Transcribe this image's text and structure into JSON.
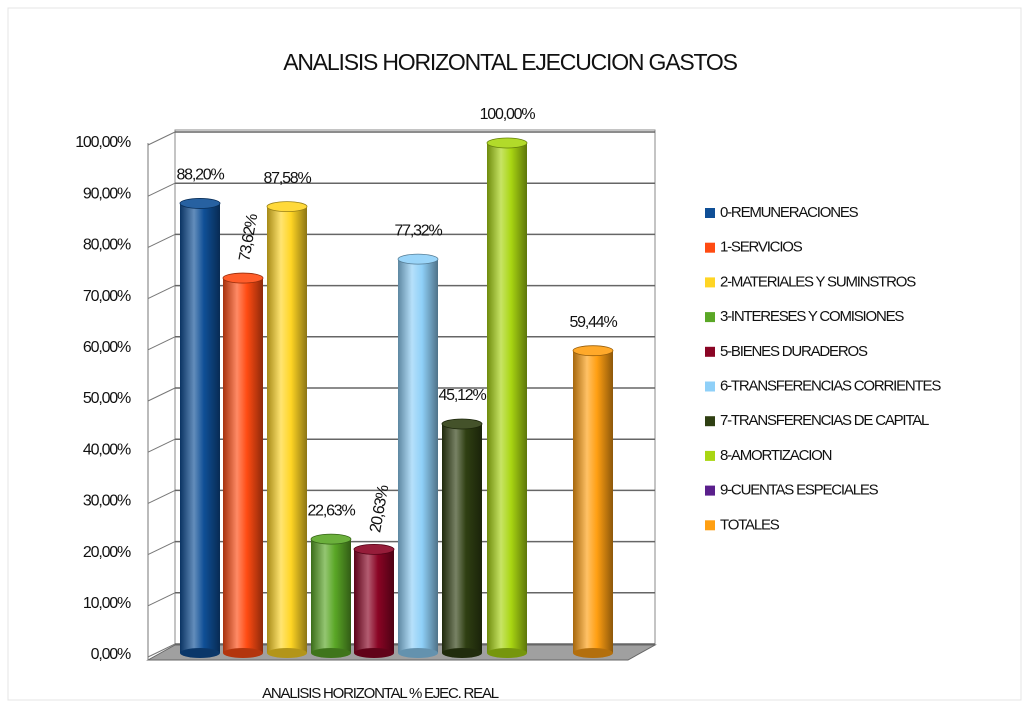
{
  "chart_data": {
    "type": "bar",
    "title": "ANALISIS HORIZONTAL EJECUCION GASTOS",
    "xlabel": "ANALISIS HORIZONTAL % EJEC. REAL",
    "ylim": [
      0,
      100
    ],
    "yticks": [
      {
        "value": 0,
        "label": "0,00%"
      },
      {
        "value": 10,
        "label": "10,00%"
      },
      {
        "value": 20,
        "label": "20,00%"
      },
      {
        "value": 30,
        "label": "30,00%"
      },
      {
        "value": 40,
        "label": "40,00%"
      },
      {
        "value": 50,
        "label": "50,00%"
      },
      {
        "value": 60,
        "label": "60,00%"
      },
      {
        "value": 70,
        "label": "70,00%"
      },
      {
        "value": 80,
        "label": "80,00%"
      },
      {
        "value": 90,
        "label": "90,00%"
      },
      {
        "value": 100,
        "label": "100,00%"
      }
    ],
    "grid": true,
    "legend": "right",
    "series": [
      {
        "name": "0-REMUNERACIONES",
        "color": "#0f4f96",
        "values": [
          88.2
        ],
        "value_labels": [
          "88,20%"
        ]
      },
      {
        "name": "1-SERVICIOS",
        "color": "#ff4b12",
        "values": [
          73.62
        ],
        "value_labels": [
          "73,62%"
        ]
      },
      {
        "name": "2-MATERIALES Y SUMINSTROS",
        "color": "#ffd524",
        "values": [
          87.58
        ],
        "value_labels": [
          "87,58%"
        ]
      },
      {
        "name": "3-INTERESES Y COMISIONES",
        "color": "#5aa726",
        "values": [
          22.63
        ],
        "value_labels": [
          "22,63%"
        ]
      },
      {
        "name": "5-BIENES DURADEROS",
        "color": "#8a0424",
        "values": [
          20.63
        ],
        "value_labels": [
          "20,63%"
        ]
      },
      {
        "name": "6-TRANSFERENCIAS CORRIENTES",
        "color": "#8fd0f8",
        "values": [
          77.32
        ],
        "value_labels": [
          "77,32%"
        ]
      },
      {
        "name": "7-TRANSFERENCIAS DE CAPITAL",
        "color": "#2f3f12",
        "values": [
          45.12
        ],
        "value_labels": [
          "45,12%"
        ]
      },
      {
        "name": "8-AMORTIZACION",
        "color": "#a9d612",
        "values": [
          100
        ],
        "value_labels": [
          "100,00%"
        ]
      },
      {
        "name": "9-CUENTAS ESPECIALES",
        "color": "#5a1f8c",
        "values": [
          0
        ],
        "value_labels": [
          null
        ]
      },
      {
        "name": "TOTALES",
        "color": "#ff9f12",
        "values": [
          59.44
        ],
        "value_labels": [
          "59,44%"
        ]
      }
    ]
  }
}
